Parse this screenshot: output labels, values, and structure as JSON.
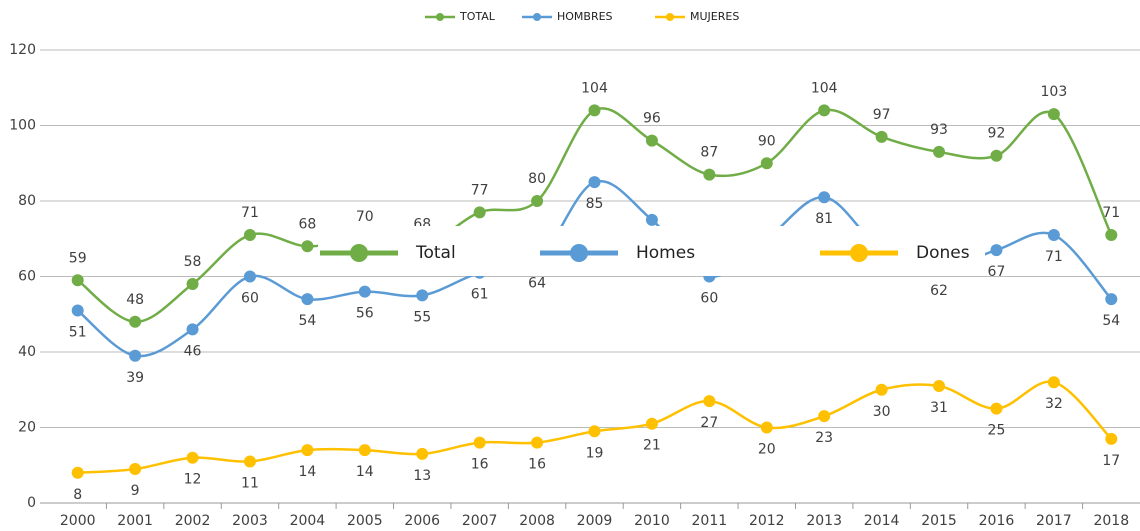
{
  "chart_data": {
    "type": "line",
    "categories": [
      "2000",
      "2001",
      "2002",
      "2003",
      "2004",
      "2005",
      "2006",
      "2007",
      "2008",
      "2009",
      "2010",
      "2011",
      "2012",
      "2013",
      "2014",
      "2015",
      "2016",
      "2017",
      "2018"
    ],
    "series": [
      {
        "name": "TOTAL",
        "color": "#70ad47",
        "values": [
          59,
          48,
          58,
          71,
          68,
          70,
          68,
          77,
          80,
          104,
          96,
          87,
          90,
          104,
          97,
          93,
          92,
          103,
          71
        ]
      },
      {
        "name": "HOMBRES",
        "color": "#5b9bd5",
        "values": [
          51,
          39,
          46,
          60,
          54,
          56,
          55,
          61,
          64,
          85,
          75,
          60,
          70,
          81,
          67,
          62,
          67,
          71,
          54
        ]
      },
      {
        "name": "MUJERES",
        "color": "#ffc000",
        "values": [
          8,
          9,
          12,
          11,
          14,
          14,
          13,
          16,
          16,
          19,
          21,
          27,
          20,
          23,
          30,
          31,
          25,
          32,
          17
        ]
      }
    ],
    "legend_overlay": [
      "Total",
      "Homes",
      "Dones"
    ],
    "ylim": [
      0,
      120
    ],
    "yticks": [
      0,
      20,
      40,
      60,
      80,
      100,
      120
    ],
    "grid": true,
    "legend": "top"
  }
}
